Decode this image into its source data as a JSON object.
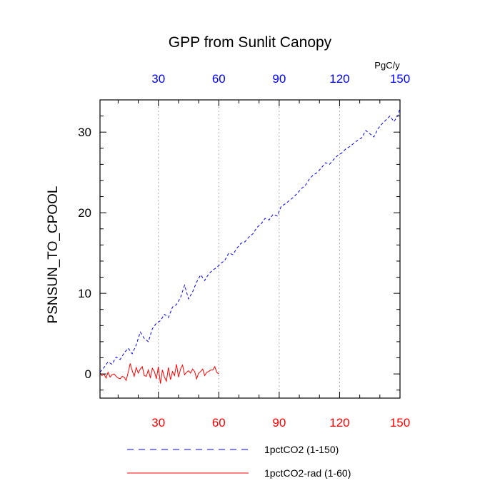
{
  "chart_data": {
    "type": "line",
    "title": "GPP from Sunlit Canopy",
    "xlabel": "",
    "ylabel": "PSNSUN_TO_CPOOL",
    "top_axis_unit": "PgC/y",
    "xlim": [
      1,
      150
    ],
    "ylim": [
      -3,
      34
    ],
    "x_ticks": [
      30,
      60,
      90,
      120,
      150
    ],
    "y_ticks": [
      0,
      10,
      20,
      30
    ],
    "top_tick_labels": [
      "30",
      "60",
      "90",
      "120",
      "150"
    ],
    "bottom_tick_labels": [
      "30",
      "60",
      "90",
      "120",
      "150"
    ],
    "y_tick_labels": [
      "0",
      "10",
      "20",
      "30"
    ],
    "grid": "vertical dotted at x ticks",
    "legend_position": "bottom",
    "colors": {
      "series1": "#0000ff",
      "series2": "#ff0000",
      "top_ticks": "#0000ff",
      "bottom_ticks": "#ff0000"
    },
    "series": [
      {
        "name": "1pctCO2 (1-150)",
        "style": "dashed",
        "color": "#0000ff",
        "x": [
          1,
          3,
          5,
          7,
          9,
          11,
          13,
          15,
          17,
          19,
          21,
          23,
          25,
          27,
          29,
          31,
          33,
          35,
          37,
          39,
          41,
          43,
          45,
          47,
          49,
          51,
          53,
          55,
          57,
          59,
          61,
          63,
          65,
          67,
          69,
          71,
          73,
          75,
          77,
          79,
          81,
          83,
          85,
          87,
          89,
          91,
          93,
          95,
          97,
          99,
          101,
          103,
          105,
          107,
          109,
          111,
          113,
          115,
          117,
          119,
          121,
          123,
          125,
          127,
          129,
          131,
          133,
          135,
          137,
          139,
          141,
          143,
          145,
          147,
          149,
          150
        ],
        "values": [
          0.2,
          0.8,
          1.5,
          1.2,
          2.1,
          1.8,
          2.6,
          3.2,
          2.5,
          3.6,
          5.2,
          4.4,
          4.0,
          5.6,
          6.3,
          6.6,
          7.4,
          7.0,
          8.3,
          8.6,
          9.5,
          11.0,
          9.3,
          10.2,
          11.4,
          12.3,
          11.6,
          12.4,
          12.9,
          13.2,
          13.7,
          14.1,
          15.0,
          14.8,
          15.6,
          16.2,
          16.4,
          17.0,
          17.4,
          18.2,
          18.6,
          19.3,
          19.1,
          19.8,
          19.6,
          20.8,
          21.1,
          21.5,
          21.9,
          22.4,
          23.0,
          23.4,
          24.2,
          24.7,
          25.0,
          25.6,
          26.2,
          26.0,
          26.6,
          27.1,
          27.4,
          27.9,
          28.2,
          28.6,
          29.0,
          29.3,
          30.2,
          29.8,
          29.4,
          30.4,
          31.0,
          31.5,
          32.0,
          31.3,
          32.1,
          33.0
        ]
      },
      {
        "name": "1pctCO2-rad (1-60)",
        "style": "solid",
        "color": "#ff0000",
        "x": [
          1,
          2,
          3,
          4,
          5,
          6,
          7,
          8,
          9,
          10,
          11,
          12,
          13,
          14,
          15,
          16,
          17,
          18,
          19,
          20,
          21,
          22,
          23,
          24,
          25,
          26,
          27,
          28,
          29,
          30,
          31,
          32,
          33,
          34,
          35,
          36,
          37,
          38,
          39,
          40,
          41,
          42,
          43,
          44,
          45,
          46,
          47,
          48,
          49,
          50,
          51,
          52,
          53,
          54,
          55,
          56,
          57,
          58,
          59,
          60
        ],
        "values": [
          0.1,
          -0.2,
          0.0,
          -0.5,
          0.2,
          -0.4,
          -0.1,
          0.0,
          -0.3,
          -0.5,
          -0.6,
          -0.3,
          -0.4,
          -0.8,
          0.2,
          1.3,
          0.4,
          -0.3,
          0.8,
          0.1,
          0.6,
          0.9,
          -0.2,
          -0.3,
          0.5,
          -0.5,
          0.7,
          0.3,
          -0.6,
          0.9,
          -1.2,
          0.5,
          -0.4,
          -0.9,
          0.8,
          -0.7,
          0.3,
          -0.2,
          1.2,
          -0.4,
          0.6,
          1.1,
          -0.1,
          0.2,
          0.4,
          0.1,
          0.6,
          0.3,
          -0.6,
          0.1,
          0.3,
          0.6,
          -0.2,
          0.2,
          0.3,
          0.5,
          0.5,
          0.9,
          0.2,
          0.0
        ]
      }
    ]
  }
}
